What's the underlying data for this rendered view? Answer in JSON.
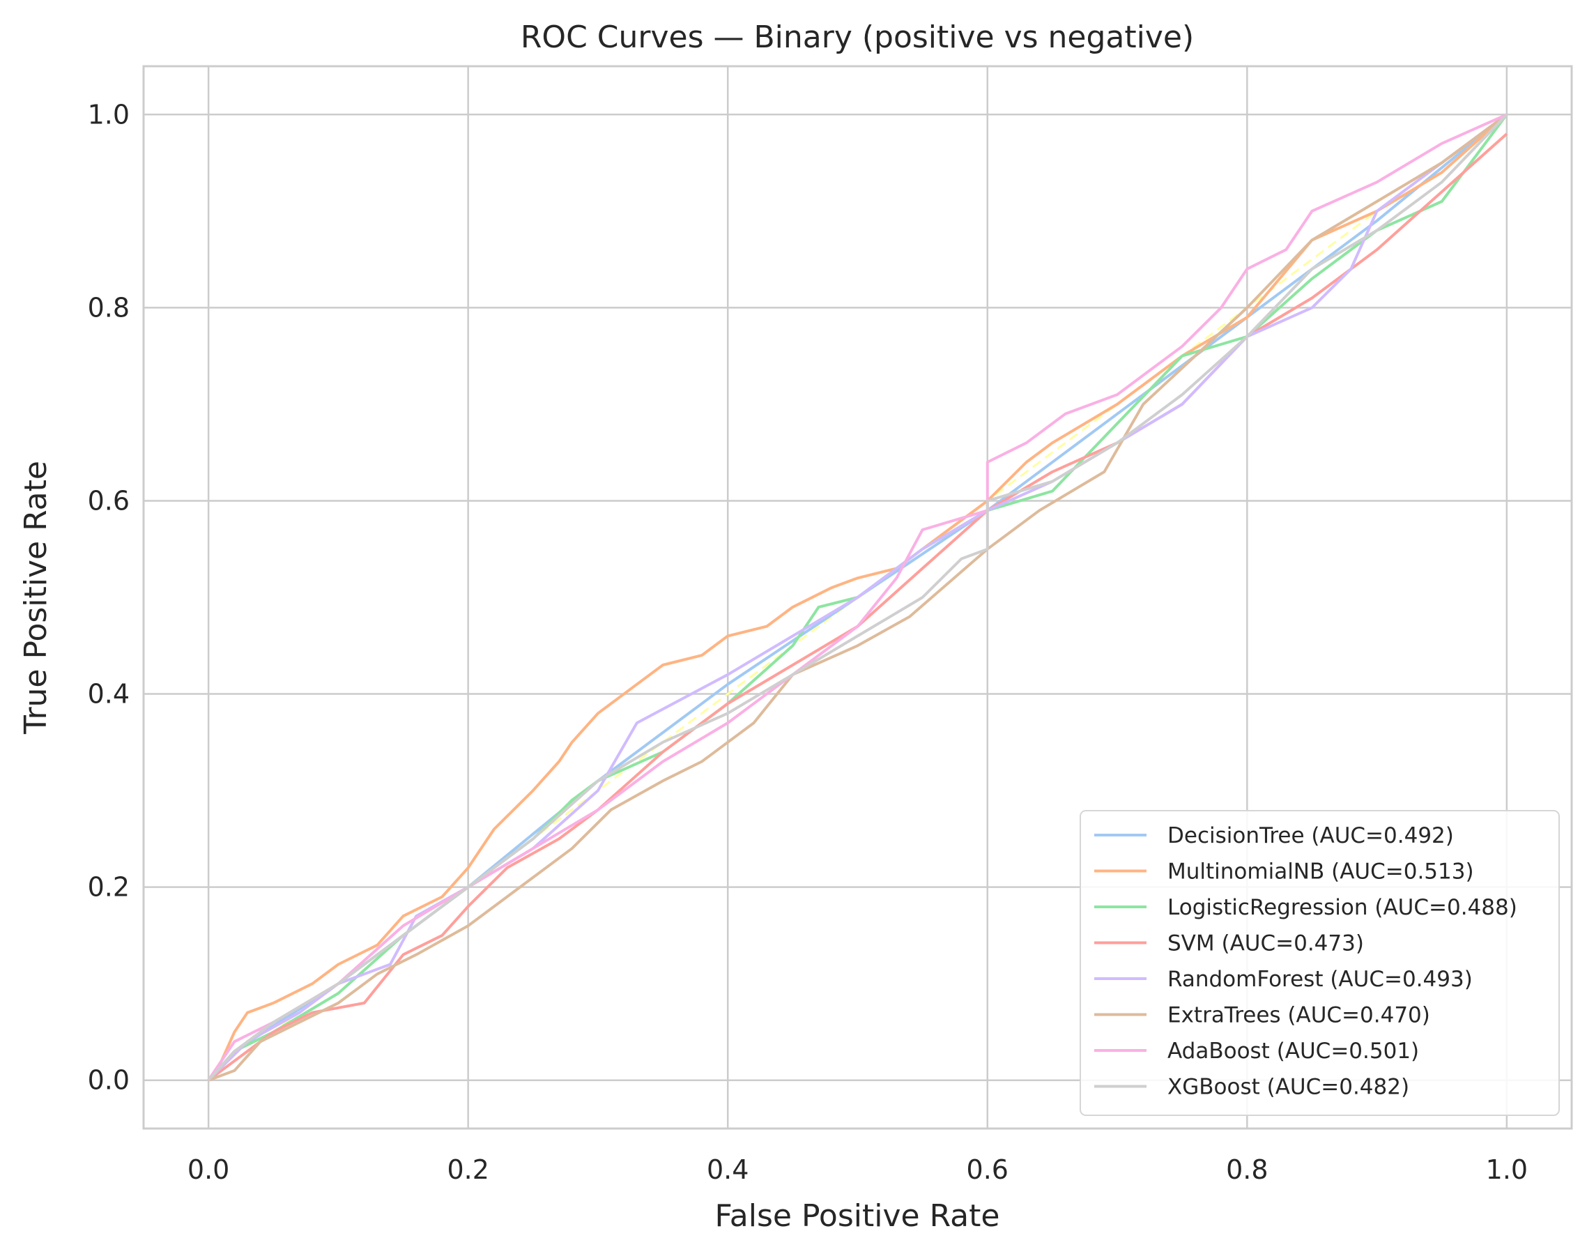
{
  "chart_data": {
    "type": "line",
    "title": "ROC Curves — Binary (positive vs negative)",
    "xlabel": "False Positive Rate",
    "ylabel": "True Positive Rate",
    "xlim": [
      -0.05,
      1.05
    ],
    "ylim": [
      -0.05,
      1.05
    ],
    "xticks": [
      0.0,
      0.2,
      0.4,
      0.6,
      0.8,
      1.0
    ],
    "xtick_labels": [
      "0.0",
      "0.2",
      "0.4",
      "0.6",
      "0.8",
      "1.0"
    ],
    "yticks": [
      0.0,
      0.2,
      0.4,
      0.6,
      0.8,
      1.0
    ],
    "ytick_labels": [
      "0.0",
      "0.2",
      "0.4",
      "0.6",
      "0.8",
      "1.0"
    ],
    "grid": true,
    "legend_position": "lower-right",
    "diagonal": {
      "x": [
        0,
        1
      ],
      "y": [
        0,
        1
      ],
      "color": "#fffea3",
      "dashed": true
    },
    "series": [
      {
        "name": "DecisionTree",
        "label": "DecisionTree (AUC=0.492)",
        "auc": 0.492,
        "color": "#a1c9f4",
        "x": [
          0,
          0.02,
          0.1,
          0.2,
          0.3,
          0.4,
          0.5,
          0.6,
          0.7,
          0.8,
          0.9,
          1.0
        ],
        "y": [
          0,
          0.03,
          0.1,
          0.2,
          0.31,
          0.41,
          0.5,
          0.59,
          0.69,
          0.79,
          0.89,
          1.0
        ]
      },
      {
        "name": "MultinomialNB",
        "label": "MultinomialNB (AUC=0.513)",
        "auc": 0.513,
        "color": "#ffb482",
        "x": [
          0,
          0.01,
          0.02,
          0.03,
          0.05,
          0.08,
          0.1,
          0.13,
          0.15,
          0.18,
          0.2,
          0.22,
          0.25,
          0.27,
          0.28,
          0.3,
          0.33,
          0.35,
          0.38,
          0.4,
          0.43,
          0.45,
          0.48,
          0.5,
          0.53,
          0.55,
          0.6,
          0.63,
          0.65,
          0.7,
          0.75,
          0.8,
          0.85,
          0.9,
          0.95,
          1.0
        ],
        "y": [
          0,
          0.02,
          0.05,
          0.07,
          0.08,
          0.1,
          0.12,
          0.14,
          0.17,
          0.19,
          0.22,
          0.26,
          0.3,
          0.33,
          0.35,
          0.38,
          0.41,
          0.43,
          0.44,
          0.46,
          0.47,
          0.49,
          0.51,
          0.52,
          0.53,
          0.55,
          0.6,
          0.64,
          0.66,
          0.7,
          0.75,
          0.79,
          0.87,
          0.9,
          0.94,
          1.0
        ]
      },
      {
        "name": "LogisticRegression",
        "label": "LogisticRegression (AUC=0.488)",
        "auc": 0.488,
        "color": "#8de5a1",
        "x": [
          0,
          0.02,
          0.05,
          0.1,
          0.15,
          0.2,
          0.25,
          0.28,
          0.3,
          0.35,
          0.4,
          0.45,
          0.47,
          0.5,
          0.55,
          0.6,
          0.65,
          0.7,
          0.75,
          0.8,
          0.85,
          0.9,
          0.95,
          1.0
        ],
        "y": [
          0,
          0.03,
          0.05,
          0.09,
          0.15,
          0.2,
          0.25,
          0.29,
          0.31,
          0.34,
          0.39,
          0.45,
          0.49,
          0.5,
          0.55,
          0.59,
          0.61,
          0.68,
          0.75,
          0.77,
          0.83,
          0.88,
          0.91,
          1.0
        ]
      },
      {
        "name": "SVM",
        "label": "SVM (AUC=0.473)",
        "auc": 0.473,
        "color": "#ff9f9b",
        "x": [
          0,
          0.02,
          0.05,
          0.08,
          0.12,
          0.15,
          0.18,
          0.2,
          0.23,
          0.27,
          0.3,
          0.35,
          0.4,
          0.45,
          0.5,
          0.55,
          0.6,
          0.65,
          0.7,
          0.75,
          0.8,
          0.85,
          0.9,
          0.95,
          1.0
        ],
        "y": [
          0,
          0.02,
          0.05,
          0.07,
          0.08,
          0.13,
          0.15,
          0.18,
          0.22,
          0.25,
          0.28,
          0.34,
          0.39,
          0.43,
          0.47,
          0.53,
          0.59,
          0.63,
          0.66,
          0.7,
          0.77,
          0.81,
          0.86,
          0.92,
          0.98
        ]
      },
      {
        "name": "RandomForest",
        "label": "RandomForest (AUC=0.493)",
        "auc": 0.493,
        "color": "#d0bbff",
        "x": [
          0,
          0.03,
          0.07,
          0.1,
          0.14,
          0.16,
          0.2,
          0.25,
          0.3,
          0.33,
          0.4,
          0.45,
          0.5,
          0.55,
          0.6,
          0.65,
          0.7,
          0.75,
          0.8,
          0.85,
          0.88,
          0.9,
          0.95,
          1.0
        ],
        "y": [
          0,
          0.04,
          0.07,
          0.1,
          0.12,
          0.17,
          0.2,
          0.24,
          0.3,
          0.37,
          0.42,
          0.46,
          0.5,
          0.55,
          0.59,
          0.62,
          0.66,
          0.7,
          0.77,
          0.8,
          0.84,
          0.9,
          0.95,
          1.0
        ]
      },
      {
        "name": "ExtraTrees",
        "label": "ExtraTrees (AUC=0.470)",
        "auc": 0.47,
        "color": "#debb9b",
        "x": [
          0,
          0.02,
          0.04,
          0.07,
          0.1,
          0.13,
          0.16,
          0.2,
          0.24,
          0.28,
          0.31,
          0.35,
          0.38,
          0.42,
          0.45,
          0.5,
          0.54,
          0.6,
          0.64,
          0.69,
          0.72,
          0.76,
          0.8,
          0.85,
          0.9,
          0.95,
          1.0
        ],
        "y": [
          0,
          0.01,
          0.04,
          0.06,
          0.08,
          0.11,
          0.13,
          0.16,
          0.2,
          0.24,
          0.28,
          0.31,
          0.33,
          0.37,
          0.42,
          0.45,
          0.48,
          0.55,
          0.59,
          0.63,
          0.7,
          0.75,
          0.8,
          0.87,
          0.91,
          0.95,
          1.0
        ]
      },
      {
        "name": "AdaBoost",
        "label": "AdaBoost (AUC=0.501)",
        "auc": 0.501,
        "color": "#fab0e4",
        "x": [
          0,
          0.01,
          0.02,
          0.05,
          0.1,
          0.15,
          0.2,
          0.25,
          0.3,
          0.35,
          0.4,
          0.45,
          0.5,
          0.53,
          0.55,
          0.6,
          0.6,
          0.63,
          0.66,
          0.7,
          0.75,
          0.78,
          0.8,
          0.83,
          0.85,
          0.9,
          0.95,
          1.0
        ],
        "y": [
          0,
          0.02,
          0.04,
          0.06,
          0.1,
          0.16,
          0.2,
          0.24,
          0.28,
          0.33,
          0.37,
          0.42,
          0.47,
          0.52,
          0.57,
          0.59,
          0.64,
          0.66,
          0.69,
          0.71,
          0.76,
          0.8,
          0.84,
          0.86,
          0.9,
          0.93,
          0.97,
          1.0
        ]
      },
      {
        "name": "XGBoost",
        "label": "XGBoost (AUC=0.482)",
        "auc": 0.482,
        "color": "#cfcfcf",
        "x": [
          0,
          0.02,
          0.05,
          0.1,
          0.15,
          0.2,
          0.25,
          0.3,
          0.35,
          0.4,
          0.45,
          0.5,
          0.55,
          0.58,
          0.6,
          0.6,
          0.65,
          0.7,
          0.75,
          0.8,
          0.85,
          0.9,
          0.95,
          1.0
        ],
        "y": [
          0,
          0.03,
          0.06,
          0.1,
          0.15,
          0.2,
          0.25,
          0.31,
          0.35,
          0.38,
          0.42,
          0.46,
          0.5,
          0.54,
          0.55,
          0.6,
          0.62,
          0.66,
          0.71,
          0.77,
          0.84,
          0.88,
          0.93,
          1.0
        ]
      }
    ]
  }
}
